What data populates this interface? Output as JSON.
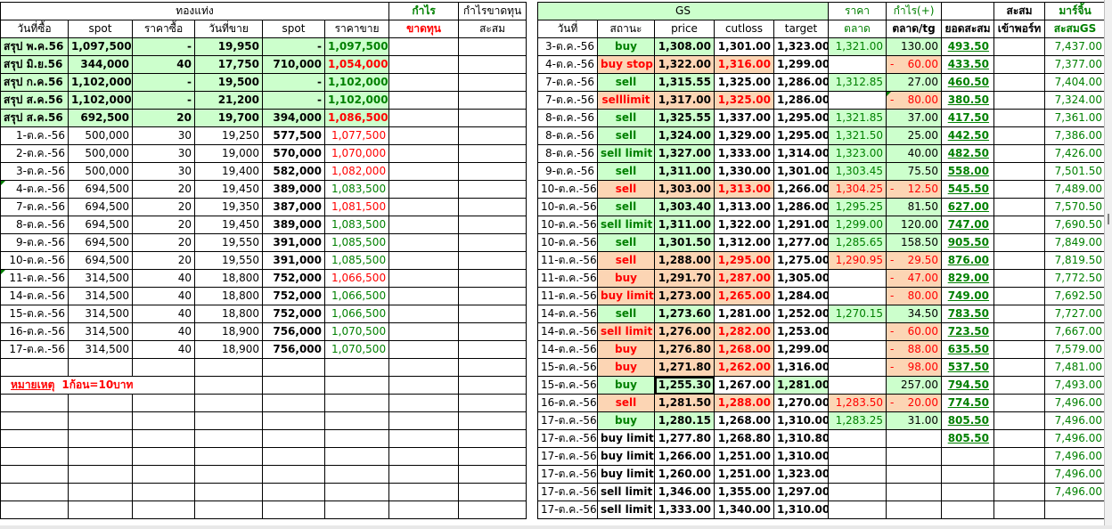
{
  "left": {
    "header_group": "ทองแท่ง",
    "profit_header": "กำไร",
    "loss_header": "ขาดทุน",
    "cum_header": "กำไรขาดทุน",
    "cum_sub": "สะสม",
    "col_headers": [
      "วันที่ซื้อ",
      "spot",
      "ราคาซื้อ",
      "วันที่ขาย",
      "spot",
      "ราคาขาย"
    ],
    "summary_rows": [
      {
        "date": "สรุป พ.ค.56",
        "spot": "1,097,500",
        "buy": "-",
        "sell_date": "19,950",
        "spot2": "-",
        "sell": "1,097,500",
        "sell_color": "green"
      },
      {
        "date": "สรุป มิ.ย.56",
        "spot": "344,000",
        "buy": "40",
        "sell_date": "17,750",
        "spot2": "710,000",
        "sell": "1,054,000",
        "sell_color": "red"
      },
      {
        "date": "สรุป ก.ค.56",
        "spot": "1,102,000",
        "buy": "-",
        "sell_date": "19,500",
        "spot2": "-",
        "sell": "1,102,000",
        "sell_color": "green"
      },
      {
        "date": "สรุป ส.ค.56",
        "spot": "1,102,000",
        "buy": "-",
        "sell_date": "21,200",
        "spot2": "-",
        "sell": "1,102,000",
        "sell_color": "green"
      },
      {
        "date": "สรุป ส.ค.56",
        "spot": "692,500",
        "buy": "20",
        "sell_date": "19,700",
        "spot2": "394,000",
        "sell": "1,086,500",
        "sell_color": "red"
      }
    ],
    "rows": [
      {
        "date": "1-ต.ค.-56",
        "spot": "500,000",
        "buy": "30",
        "sell_date": "19,250",
        "spot2": "577,500",
        "sell": "1,077,500",
        "sell_color": "red"
      },
      {
        "date": "2-ต.ค.-56",
        "spot": "500,000",
        "buy": "30",
        "sell_date": "19,000",
        "spot2": "570,000",
        "sell": "1,070,000",
        "sell_color": "red"
      },
      {
        "date": "3-ต.ค.-56",
        "spot": "500,000",
        "buy": "30",
        "sell_date": "19,400",
        "spot2": "582,000",
        "sell": "1,082,000",
        "sell_color": "red"
      },
      {
        "date": "4-ต.ค.-56",
        "spot": "694,500",
        "buy": "20",
        "sell_date": "19,450",
        "spot2": "389,000",
        "sell": "1,083,500",
        "sell_color": "green"
      },
      {
        "date": "7-ต.ค.-56",
        "spot": "694,500",
        "buy": "20",
        "sell_date": "19,350",
        "spot2": "387,000",
        "sell": "1,081,500",
        "sell_color": "red"
      },
      {
        "date": "8-ต.ค.-56",
        "spot": "694,500",
        "buy": "20",
        "sell_date": "19,450",
        "spot2": "389,000",
        "sell": "1,083,500",
        "sell_color": "green"
      },
      {
        "date": "9-ต.ค.-56",
        "spot": "694,500",
        "buy": "20",
        "sell_date": "19,550",
        "spot2": "391,000",
        "sell": "1,085,500",
        "sell_color": "green"
      },
      {
        "date": "10-ต.ค.-56",
        "spot": "694,500",
        "buy": "20",
        "sell_date": "19,550",
        "spot2": "391,000",
        "sell": "1,085,500",
        "sell_color": "green"
      },
      {
        "date": "11-ต.ค.-56",
        "spot": "314,500",
        "buy": "40",
        "sell_date": "18,800",
        "spot2": "752,000",
        "sell": "1,066,500",
        "sell_color": "red"
      },
      {
        "date": "14-ต.ค.-56",
        "spot": "314,500",
        "buy": "40",
        "sell_date": "18,800",
        "spot2": "752,000",
        "sell": "1,066,500",
        "sell_color": "green"
      },
      {
        "date": "15-ต.ค.-56",
        "spot": "314,500",
        "buy": "40",
        "sell_date": "18,800",
        "spot2": "752,000",
        "sell": "1,066,500",
        "sell_color": "green"
      },
      {
        "date": "16-ต.ค.-56",
        "spot": "314,500",
        "buy": "40",
        "sell_date": "18,900",
        "spot2": "756,000",
        "sell": "1,070,500",
        "sell_color": "green"
      },
      {
        "date": "17-ต.ค.-56",
        "spot": "314,500",
        "buy": "40",
        "sell_date": "18,900",
        "spot2": "756,000",
        "sell": "1,070,500",
        "sell_color": "green"
      }
    ],
    "note_label": "หมายเหตุ",
    "note_text": "1ก้อน=10บาท"
  },
  "right": {
    "gs_header": "GS",
    "market_header_1": "ราคา",
    "market_header_2": "ตลาด",
    "profit_header_1": "กำไร(+)",
    "profit_header_2": "ตลาด/tg",
    "cum_header": "ยอดสะสม",
    "port_header_1": "สะสม",
    "port_header_2": "เข้าพอร์ท",
    "margin_header_1": "มาร์จิ้น",
    "margin_header_2": "สะสมGS",
    "col_headers": [
      "วันที่",
      "สถานะ",
      "price",
      "cutloss",
      "target"
    ],
    "rows": [
      {
        "date": "3-ต.ค.-56",
        "status": "buy",
        "st": "buy",
        "price": "1,308.00",
        "cut": "1,301.00",
        "target": "1,323.00",
        "mkt": "1,321.00",
        "profit": "130.00",
        "cum": "493.50",
        "margin": "7,437.00"
      },
      {
        "date": "4-ต.ค.-56",
        "status": "buy stop",
        "st": "loss",
        "price": "1,322.00",
        "cut": "1,316.00",
        "target": "1,299.00",
        "mkt": "",
        "profit": "60.00",
        "neg": true,
        "cum": "433.50",
        "margin": "7,377.00"
      },
      {
        "date": "7-ต.ค.-56",
        "status": "sell",
        "st": "sell",
        "price": "1,315.55",
        "cut": "1,325.00",
        "target": "1,286.00",
        "mkt": "1,312.85",
        "profit": "27.00",
        "cum": "460.50",
        "margin": "7,404.00"
      },
      {
        "date": "7-ต.ค.-56",
        "status": "selllimit",
        "st": "loss",
        "price": "1,317.00",
        "cut": "1,325.00",
        "target": "1,286.00",
        "mkt": "",
        "profit": "80.00",
        "neg": true,
        "tri": true,
        "cum": "380.50",
        "margin": "7,324.00"
      },
      {
        "date": "8-ต.ค.-56",
        "status": "sell",
        "st": "sell",
        "price": "1,325.55",
        "cut": "1,337.00",
        "target": "1,295.00",
        "mkt": "1,321.85",
        "profit": "37.00",
        "cum": "417.50",
        "margin": "7,361.00"
      },
      {
        "date": "8-ต.ค.-56",
        "status": "sell",
        "st": "sell",
        "price": "1,324.00",
        "cut": "1,329.00",
        "target": "1,295.00",
        "mkt": "1,321.50",
        "profit": "25.00",
        "cum": "442.50",
        "margin": "7,386.00"
      },
      {
        "date": "8-ต.ค.-56",
        "status": "sell limit",
        "st": "sell",
        "price": "1,327.00",
        "cut": "1,333.00",
        "target": "1,314.00",
        "mkt": "1,323.00",
        "profit": "40.00",
        "cum": "482.50",
        "margin": "7,426.00"
      },
      {
        "date": "9-ต.ค.-56",
        "status": "sell",
        "st": "sell",
        "price": "1,311.00",
        "cut": "1,330.00",
        "target": "1,301.00",
        "mkt": "1,303.45",
        "profit": "75.50",
        "cum": "558.00",
        "margin": "7,501.50"
      },
      {
        "date": "10-ต.ค.-56",
        "status": "sell",
        "st": "loss",
        "price": "1,303.00",
        "cut": "1,313.00",
        "target": "1,266.00",
        "mkt": "1,304.25",
        "mkt_loss": true,
        "profit": "12.50",
        "neg": true,
        "cum": "545.50",
        "margin": "7,489.00"
      },
      {
        "date": "10-ต.ค.-56",
        "status": "sell",
        "st": "sell",
        "price": "1,303.40",
        "cut": "1,313.00",
        "target": "1,286.00",
        "mkt": "1,295.25",
        "profit": "81.50",
        "cum": "627.00",
        "margin": "7,570.50"
      },
      {
        "date": "10-ต.ค.-56",
        "status": "sell limit",
        "st": "sell",
        "price": "1,311.00",
        "cut": "1,322.00",
        "target": "1,291.00",
        "mkt": "1,299.00",
        "profit": "120.00",
        "cum": "747.00",
        "margin": "7,690.50"
      },
      {
        "date": "10-ต.ค.-56",
        "status": "sell",
        "st": "sell",
        "price": "1,301.50",
        "cut": "1,312.00",
        "target": "1,277.00",
        "mkt": "1,285.65",
        "profit": "158.50",
        "cum": "905.50",
        "margin": "7,849.00"
      },
      {
        "date": "11-ต.ค.-56",
        "status": "sell",
        "st": "loss",
        "price": "1,288.00",
        "cut": "1,295.00",
        "target": "1,275.00",
        "mkt": "1,290.95",
        "mkt_loss": true,
        "profit": "29.50",
        "neg": true,
        "cum": "876.00",
        "margin": "7,819.50"
      },
      {
        "date": "11-ต.ค.-56",
        "status": "buy",
        "st": "lossbuy",
        "price": "1,291.70",
        "cut": "1,287.00",
        "target": "1,305.00",
        "mkt": "",
        "profit": "47.00",
        "neg": true,
        "cum": "829.00",
        "margin": "7,772.50"
      },
      {
        "date": "11-ต.ค.-56",
        "status": "buy limit",
        "st": "lossbuy",
        "price": "1,273.00",
        "cut": "1,265.00",
        "target": "1,284.00",
        "mkt": "",
        "profit": "80.00",
        "neg": true,
        "cum": "749.00",
        "margin": "7,692.50"
      },
      {
        "date": "14-ต.ค.-56",
        "status": "sell",
        "st": "sell",
        "price": "1,273.60",
        "cut": "1,281.00",
        "target": "1,252.00",
        "mkt": "1,270.15",
        "profit": "34.50",
        "cum": "783.50",
        "margin": "7,727.00"
      },
      {
        "date": "14-ต.ค.-56",
        "status": "sell limit",
        "st": "loss",
        "price": "1,276.00",
        "cut": "1,282.00",
        "target": "1,253.00",
        "mkt": "",
        "profit": "60.00",
        "neg": true,
        "cum": "723.50",
        "margin": "7,667.00"
      },
      {
        "date": "14-ต.ค.-56",
        "status": "buy",
        "st": "lossbuy",
        "price": "1,276.80",
        "cut": "1,268.00",
        "target": "1,299.00",
        "mkt": "",
        "profit": "88.00",
        "neg": true,
        "cum": "635.50",
        "margin": "7,579.00"
      },
      {
        "date": "15-ต.ค.-56",
        "status": "buy",
        "st": "lossbuy",
        "price": "1,271.80",
        "cut": "1,262.00",
        "target": "1,316.00",
        "mkt": "",
        "profit": "98.00",
        "neg": true,
        "cum": "537.50",
        "margin": "7,481.00"
      },
      {
        "date": "15-ต.ค.-56",
        "status": "buy",
        "st": "buyt",
        "price": "1,255.30",
        "cut": "1,267.00",
        "target": "1,281.00",
        "mkt": "",
        "profit": "257.00",
        "cum": "794.50",
        "margin": "7,493.00",
        "sel": true
      },
      {
        "date": "16-ต.ค.-56",
        "status": "sell",
        "st": "loss",
        "price": "1,281.50",
        "cut": "1,288.00",
        "target": "1,270.00",
        "mkt": "1,283.50",
        "mkt_loss": true,
        "profit": "20.00",
        "neg": true,
        "cum": "774.50",
        "margin": "7,496.00"
      },
      {
        "date": "17-ต.ค.-56",
        "status": "buy",
        "st": "buy",
        "price": "1,280.15",
        "cut": "1,268.00",
        "target": "1,310.00",
        "mkt": "1,283.25",
        "profit": "31.00",
        "cum": "805.50",
        "margin": "7,496.00"
      },
      {
        "date": "17-ต.ค.-56",
        "status": "buy limit",
        "st": "plain",
        "price": "1,277.80",
        "cut": "1,268.80",
        "target": "1,310.80",
        "mkt": "",
        "profit": "",
        "cum": "805.50",
        "margin": "7,496.00"
      },
      {
        "date": "17-ต.ค.-56",
        "status": "buy limit",
        "st": "plain",
        "price": "1,266.00",
        "cut": "1,251.00",
        "target": "1,310.00",
        "mkt": "",
        "profit": "",
        "cum": "",
        "margin": "7,496.00"
      },
      {
        "date": "17-ต.ค.-56",
        "status": "buy limit",
        "st": "plain",
        "price": "1,260.00",
        "cut": "1,251.00",
        "target": "1,323.00",
        "mkt": "",
        "profit": "",
        "cum": "",
        "margin": "7,496.00"
      },
      {
        "date": "17-ต.ค.-56",
        "status": "sell limit",
        "st": "plain",
        "price": "1,346.00",
        "cut": "1,355.00",
        "target": "1,297.00",
        "mkt": "",
        "profit": "",
        "cum": "",
        "margin": "7,496.00"
      },
      {
        "date": "17-ต.ค.-56",
        "status": "sell limit",
        "st": "plain",
        "price": "1,333.00",
        "cut": "1,340.00",
        "target": "1,310.00",
        "mkt": "",
        "profit": "",
        "cum": "",
        "margin": ""
      }
    ]
  },
  "colors": {
    "green": "#008000",
    "red": "#ff0000",
    "green_fill": "#ccffcc",
    "orange_fill": "#fcd5b4"
  }
}
